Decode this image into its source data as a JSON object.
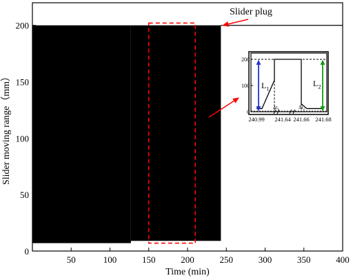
{
  "chart_data": [
    {
      "type": "area",
      "xlabel": "Time (min)",
      "ylabel": "Slider moving range（mm）",
      "xlim": [
        0,
        400
      ],
      "ylim": [
        0,
        220
      ],
      "x_ticks": [
        50,
        100,
        150,
        200,
        250,
        300,
        350,
        400
      ],
      "y_ticks": [
        0,
        50,
        100,
        150,
        200
      ],
      "grid": false,
      "series": [
        {
          "color": "#000000",
          "x_range": [
            0,
            243
          ],
          "upper": 200,
          "lower_segments": [
            {
              "x": [
                0,
                127
              ],
              "y": 7
            },
            {
              "x": [
                127,
                243
              ],
              "y": 9
            }
          ]
        }
      ],
      "reference_line": {
        "y": 200,
        "x_range": [
          243,
          400
        ]
      },
      "highlight_window": {
        "x": [
          150,
          210
        ],
        "y": [
          7,
          202
        ],
        "color": "#ff0000",
        "style": "dashed"
      },
      "annotation": {
        "text": "Slider plug",
        "arrow_to": {
          "x": 243,
          "y": 200
        },
        "color": "#ff0000"
      }
    },
    {
      "type": "line",
      "placement": "inset",
      "ylim": [
        0,
        200
      ],
      "y_ticks": [
        0,
        100,
        200
      ],
      "x_tick_labels": [
        "240.99",
        "241.64",
        "241.66",
        "241.68"
      ],
      "x_axis_breaks": 2,
      "series": [
        {
          "color": "#000000",
          "points": [
            [
              "240.99",
              12
            ],
            [
              "241.44",
              12
            ],
            [
              "241.64",
              120
            ],
            [
              "241.64",
              200
            ],
            [
              "241.66",
              200
            ],
            [
              "241.66",
              30
            ],
            [
              "241.67",
              12
            ],
            [
              "241.68",
              12
            ]
          ]
        }
      ],
      "annotations": [
        {
          "label": "L",
          "sub": "1",
          "arrow_color": "#2233cc",
          "span": [
            0,
            200
          ]
        },
        {
          "label": "L",
          "sub": "2",
          "arrow_color": "#119911",
          "span": [
            0,
            200
          ]
        },
        {
          "label": "Δt",
          "sub": "1"
        },
        {
          "label": "Δt",
          "sub": "2"
        }
      ]
    }
  ]
}
